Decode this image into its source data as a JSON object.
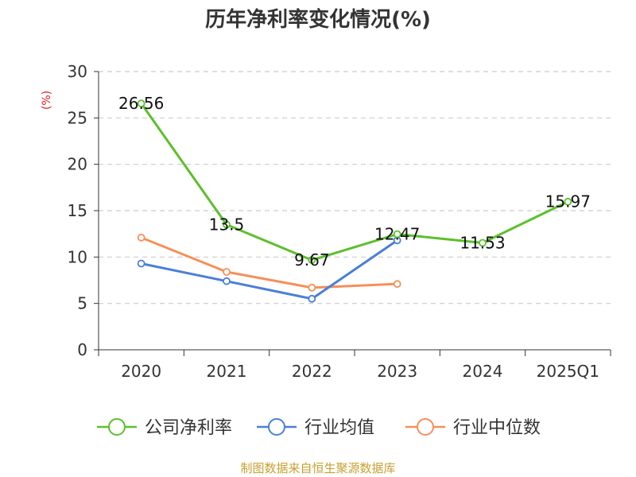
{
  "chart_data": {
    "type": "line",
    "title": "历年净利率变化情况(%)",
    "ylabel": "(%)",
    "xlabel": "",
    "categories": [
      "2020",
      "2021",
      "2022",
      "2023",
      "2024",
      "2025Q1"
    ],
    "ylim": [
      0,
      30
    ],
    "yticks": [
      0,
      5,
      10,
      15,
      20,
      25,
      30
    ],
    "grid": true,
    "legend_position": "bottom",
    "series": [
      {
        "name": "公司净利率",
        "color": "#5cc02c",
        "values": [
          26.56,
          13.5,
          9.67,
          12.47,
          11.53,
          15.97
        ],
        "labels": [
          "26.56",
          "13.5",
          "9.67",
          "12.47",
          "11.53",
          "15.97"
        ]
      },
      {
        "name": "行业均值",
        "color": "#4a7fd9",
        "values": [
          9.3,
          7.4,
          5.5,
          11.8,
          null,
          null
        ]
      },
      {
        "name": "行业中位数",
        "color": "#f5905a",
        "values": [
          12.1,
          8.4,
          6.7,
          7.1,
          null,
          null
        ]
      }
    ]
  },
  "source_note": "制图数据来自恒生聚源数据库"
}
